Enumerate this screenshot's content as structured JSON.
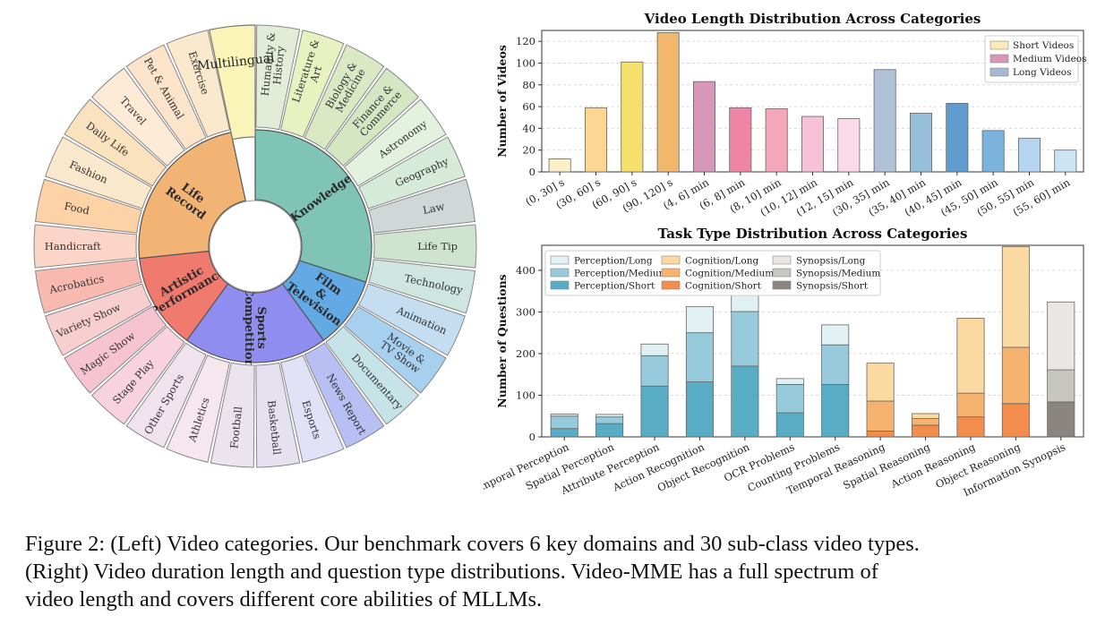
{
  "sunburst": {
    "domains": [
      {
        "label": "Knowledge",
        "color": "#7fc4b4",
        "children": [
          {
            "label": "Humanity & History",
            "color": "#e3ecd6"
          },
          {
            "label": "Literature & Art",
            "color": "#e8f2c0"
          },
          {
            "label": "Biology & Medicine",
            "color": "#dbe8c4"
          },
          {
            "label": "Finance & Commerce",
            "color": "#d4e6c2"
          },
          {
            "label": "Astronomy",
            "color": "#e4f1df"
          },
          {
            "label": "Geography",
            "color": "#d6ead9"
          },
          {
            "label": "Law",
            "color": "#cfd8d6"
          },
          {
            "label": "Life Tip",
            "color": "#cfe4cf"
          },
          {
            "label": "Technology",
            "color": "#cfe6e0"
          }
        ]
      },
      {
        "label": "Film & Television",
        "color": "#63a9e4",
        "children": [
          {
            "label": "Animation",
            "color": "#c4ddf1"
          },
          {
            "label": "Movie & TV Show",
            "color": "#a7cfee"
          },
          {
            "label": "Documentary",
            "color": "#c6e4e8"
          }
        ]
      },
      {
        "label": "Sports Competition",
        "color": "#8f8ef0",
        "children": [
          {
            "label": "News Report",
            "color": "#b7bff3"
          },
          {
            "label": "Esports",
            "color": "#e1e1f7"
          },
          {
            "label": "Basketball",
            "color": "#e5e1ef"
          },
          {
            "label": "Football",
            "color": "#ebe4ee"
          },
          {
            "label": "Athletics",
            "color": "#f6e6ee"
          },
          {
            "label": "Other Sports",
            "color": "#f0e3ee"
          }
        ]
      },
      {
        "label": "Artistic Performance",
        "color": "#f17a6e",
        "children": [
          {
            "label": "Stage Play",
            "color": "#f8d3df"
          },
          {
            "label": "Magic Show",
            "color": "#f6c3d1"
          },
          {
            "label": "Variety Show",
            "color": "#f8cfcf"
          },
          {
            "label": "Acrobatics",
            "color": "#f7b9b0"
          }
        ]
      },
      {
        "label": "Life Record",
        "color": "#f1b475",
        "children": [
          {
            "label": "Handicraft",
            "color": "#fbd6c8"
          },
          {
            "label": "Food",
            "color": "#fdd2a6"
          },
          {
            "label": "Fashion",
            "color": "#fae8cc"
          },
          {
            "label": "Daily Life",
            "color": "#fbe2bf"
          },
          {
            "label": "Travel",
            "color": "#fdebd7"
          },
          {
            "label": "Pet & Animal",
            "color": "#fbe4c9"
          },
          {
            "label": "Exercise",
            "color": "#fbe9cd"
          }
        ]
      },
      {
        "label": "Multilingual",
        "color": "#fbf4b8",
        "children": [
          {
            "label": "Multilingual",
            "color": "#fbf4b8"
          }
        ]
      }
    ]
  },
  "chart_data": [
    {
      "type": "bar",
      "title": "Video Length Distribution Across Categories",
      "xlabel": "",
      "ylabel": "Number of Videos",
      "ylim": [
        0,
        130
      ],
      "yticks": [
        0,
        20,
        40,
        60,
        80,
        100,
        120
      ],
      "grid": true,
      "legend_position": "top-right",
      "categories": [
        "(0, 30] s",
        "(30, 60] s",
        "(60, 90] s",
        "(90, 120] s",
        "(4, 6] min",
        "(6, 8] min",
        "(8, 10] min",
        "(10, 12] min",
        "(12, 15] min",
        "(30, 35] min",
        "(35, 40] min",
        "(40, 45] min",
        "(45, 50] min",
        "(50, 55] min",
        "(55, 60] min"
      ],
      "values": [
        12,
        59,
        101,
        128,
        83,
        59,
        58,
        51,
        49,
        94,
        54,
        63,
        38,
        31,
        20
      ],
      "colors": [
        "#fdf0c8",
        "#fcd692",
        "#f4e06a",
        "#f1b86d",
        "#d897b7",
        "#ef85a6",
        "#f4a6bb",
        "#f5c2d6",
        "#fbd9e8",
        "#b1c1d8",
        "#97bfd9",
        "#5f9ccd",
        "#7cb3dd",
        "#b5d5f0",
        "#cde4f5"
      ],
      "legend": [
        {
          "name": "Short Videos",
          "color": "#fdeab8"
        },
        {
          "name": "Medium Videos",
          "color": "#d898b5"
        },
        {
          "name": "Long Videos",
          "color": "#a9b8d0"
        }
      ]
    },
    {
      "type": "bar",
      "title": "Task Type Distribution Across Categories",
      "xlabel": "",
      "ylabel": "Number of Questions",
      "ylim": [
        0,
        460
      ],
      "yticks": [
        0,
        100,
        200,
        300,
        400
      ],
      "grid": true,
      "legend_position": "top-left",
      "stacked": true,
      "categories": [
        "Temporal Perception",
        "Spatial Perception",
        "Attribute Perception",
        "Action Recognition",
        "Object Recognition",
        "OCR Problems",
        "Counting Problems",
        "Temporal Reasoning",
        "Spatial Reasoning",
        "Action Reasoning",
        "Object Reasoning",
        "Information Synopsis"
      ],
      "series": [
        {
          "name": "Short",
          "values": [
            20,
            32,
            122,
            132,
            170,
            58,
            126,
            14,
            28,
            48,
            80,
            84
          ]
        },
        {
          "name": "Medium",
          "values": [
            30,
            16,
            73,
            118,
            131,
            68,
            95,
            72,
            16,
            57,
            135,
            77
          ]
        },
        {
          "name": "Long",
          "values": [
            5,
            6,
            28,
            63,
            55,
            14,
            48,
            91,
            12,
            180,
            242,
            163
          ]
        }
      ],
      "color_groups": [
        [
          "#58adc4",
          "#97cbdb",
          "#e0f0f3"
        ],
        [
          "#58adc4",
          "#97cbdb",
          "#e0f0f3"
        ],
        [
          "#58adc4",
          "#97cbdb",
          "#e0f0f3"
        ],
        [
          "#58adc4",
          "#97cbdb",
          "#e0f0f3"
        ],
        [
          "#58adc4",
          "#97cbdb",
          "#e0f0f3"
        ],
        [
          "#58adc4",
          "#97cbdb",
          "#e0f0f3"
        ],
        [
          "#58adc4",
          "#97cbdb",
          "#e0f0f3"
        ],
        [
          "#f28d4e",
          "#f6b36f",
          "#fad9a2"
        ],
        [
          "#f28d4e",
          "#f6b36f",
          "#fad9a2"
        ],
        [
          "#f28d4e",
          "#f6b36f",
          "#fad9a2"
        ],
        [
          "#f28d4e",
          "#f6b36f",
          "#fad9a2"
        ],
        [
          "#8a8580",
          "#c8c6c0",
          "#e9e7e4"
        ]
      ],
      "legend": [
        {
          "name": "Perception/Long",
          "color": "#e0f0f3"
        },
        {
          "name": "Cognition/Long",
          "color": "#fad9a2"
        },
        {
          "name": "Synopsis/Long",
          "color": "#e9e7e4"
        },
        {
          "name": "Perception/Medium",
          "color": "#97cbdb"
        },
        {
          "name": "Cognition/Medium",
          "color": "#f6b36f"
        },
        {
          "name": "Synopsis/Medium",
          "color": "#c8c6c0"
        },
        {
          "name": "Perception/Short",
          "color": "#58adc4"
        },
        {
          "name": "Cognition/Short",
          "color": "#f28d4e"
        },
        {
          "name": "Synopsis/Short",
          "color": "#8a8580"
        }
      ]
    }
  ],
  "caption": {
    "line1": "Figure 2: (Left) Video categories. Our benchmark covers 6 key domains and 30 sub-class video types.",
    "line2": "(Right) Video duration length and question type distributions. Video-MME has a full spectrum of",
    "line3": "video length and covers different core abilities of MLLMs."
  }
}
